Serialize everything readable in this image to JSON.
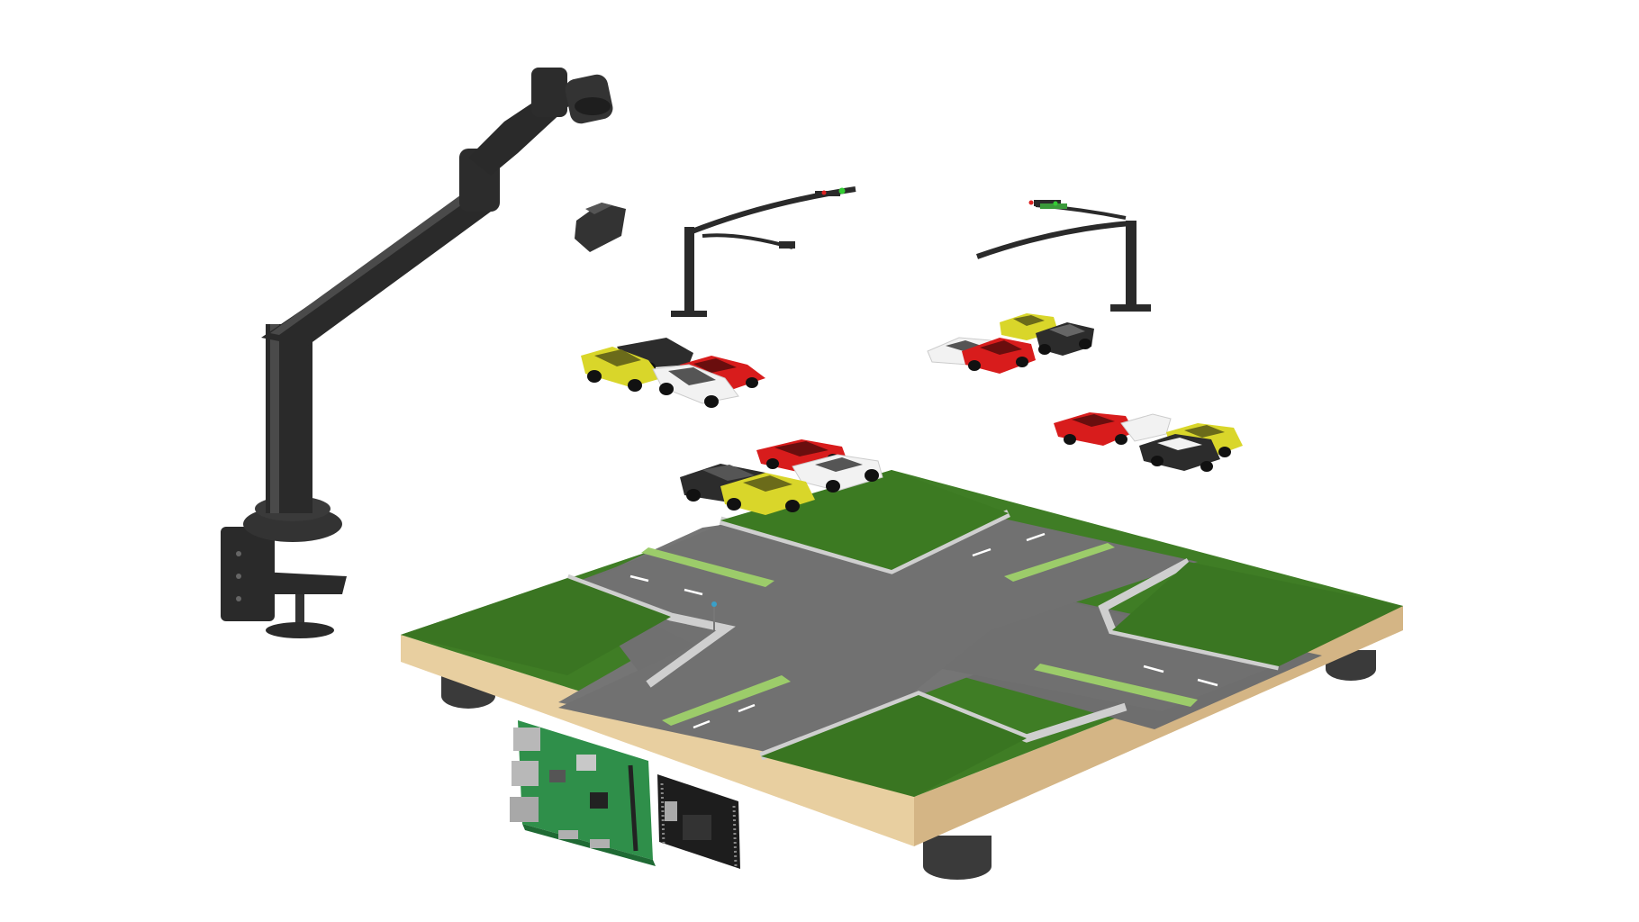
{
  "scene": {
    "background": "#ffffff",
    "colors": {
      "grass": "#3f7d25",
      "grass_dark": "#2b5e18",
      "road": "#6e6e6e",
      "road_dark": "#585858",
      "sidewalk": "#cfcfcf",
      "median": "#9ccc6a",
      "lane_mark": "#ffffff",
      "wood": "#e8cfa0",
      "wood_dark": "#c9a877",
      "foot": "#3a3a3a",
      "arm": "#2a2a2a",
      "arm_highlight": "#4a4a4a",
      "pcb_green": "#2f8f4a",
      "car_yellow": "#d9d62a",
      "car_red": "#d81c1c",
      "car_white": "#f2f2f2",
      "car_black": "#2c2c2c",
      "signal_green": "#33cc33",
      "signal_red": "#dd2222"
    },
    "objects": [
      {
        "name": "monitor-arm",
        "icon": "articulated-arm-icon"
      },
      {
        "name": "camera-head",
        "icon": "camera-icon"
      },
      {
        "name": "spare-camera",
        "icon": "camera-icon"
      },
      {
        "name": "traffic-gantry-left",
        "icon": "traffic-signal-icon"
      },
      {
        "name": "traffic-gantry-right",
        "icon": "traffic-signal-icon"
      },
      {
        "name": "car-group-left",
        "icon": "car-icon"
      },
      {
        "name": "car-group-front",
        "icon": "car-icon"
      },
      {
        "name": "car-group-right-top",
        "icon": "car-icon"
      },
      {
        "name": "car-group-right-bottom",
        "icon": "car-icon"
      },
      {
        "name": "road-board",
        "icon": "intersection-icon"
      },
      {
        "name": "raspberry-pi-board",
        "icon": "circuit-board-icon"
      },
      {
        "name": "microcontroller-board",
        "icon": "chip-icon"
      }
    ]
  }
}
